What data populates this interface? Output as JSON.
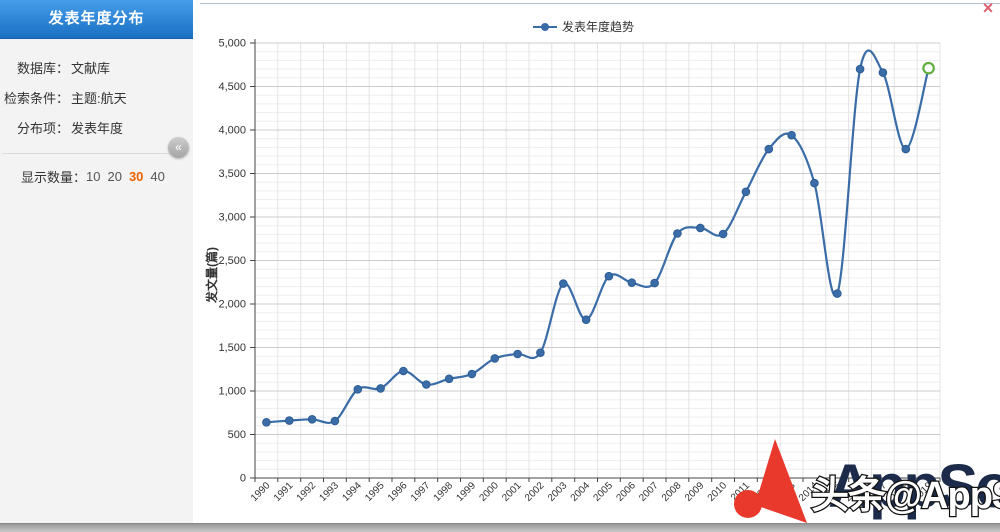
{
  "window": {
    "close_label": "×"
  },
  "sidebar": {
    "title": "发表年度分布",
    "fields": [
      {
        "label": "数据库：",
        "value": "文献库"
      },
      {
        "label": "检索条件：",
        "value": "主题:航天"
      },
      {
        "label": "分布项：",
        "value": "发表年度"
      }
    ],
    "display_count": {
      "label": "显示数量：",
      "options": [
        "10",
        "20",
        "30",
        "40"
      ],
      "selected": "30"
    },
    "collapse_icon": "«"
  },
  "chart_data": {
    "type": "line",
    "title": "",
    "legend": [
      "发表年度趋势"
    ],
    "legend_position": "top-center",
    "x": [
      "1990",
      "1991",
      "1992",
      "1993",
      "1994",
      "1995",
      "1996",
      "1997",
      "1998",
      "1999",
      "2000",
      "2001",
      "2002",
      "2003",
      "2004",
      "2005",
      "2006",
      "2007",
      "2008",
      "2009",
      "2010",
      "2011",
      "2012",
      "2013",
      "2014",
      "2015",
      "2016",
      "2017",
      "2018",
      "2019"
    ],
    "series": [
      {
        "name": "发表年度趋势",
        "values": [
          640,
          660,
          675,
          655,
          1020,
          1030,
          1230,
          1075,
          1140,
          1195,
          1375,
          1425,
          1440,
          2235,
          1820,
          2320,
          2245,
          2240,
          2810,
          2875,
          2805,
          3290,
          3780,
          3940,
          3390,
          2120,
          4700,
          4660,
          3780,
          4710
        ]
      }
    ],
    "xlabel": "",
    "ylabel": "发文量(篇)",
    "ylim": [
      0,
      5000
    ],
    "y_major_step": 500,
    "y_minor_step": 100,
    "grid": true,
    "smooth": true,
    "line_color": "#3a6ca8",
    "last_point_highlight_color": "#5fae3d"
  },
  "watermark": {
    "logo_text": "AppSo",
    "overlay_text": "头条@AppSo",
    "logo_color": "#e8392c",
    "text_color": "#1c2b4a"
  },
  "colors": {
    "header_blue_top": "#469de9",
    "header_blue_bottom": "#1a70c4",
    "accent_orange": "#f26100",
    "close_red": "#e0616f"
  }
}
